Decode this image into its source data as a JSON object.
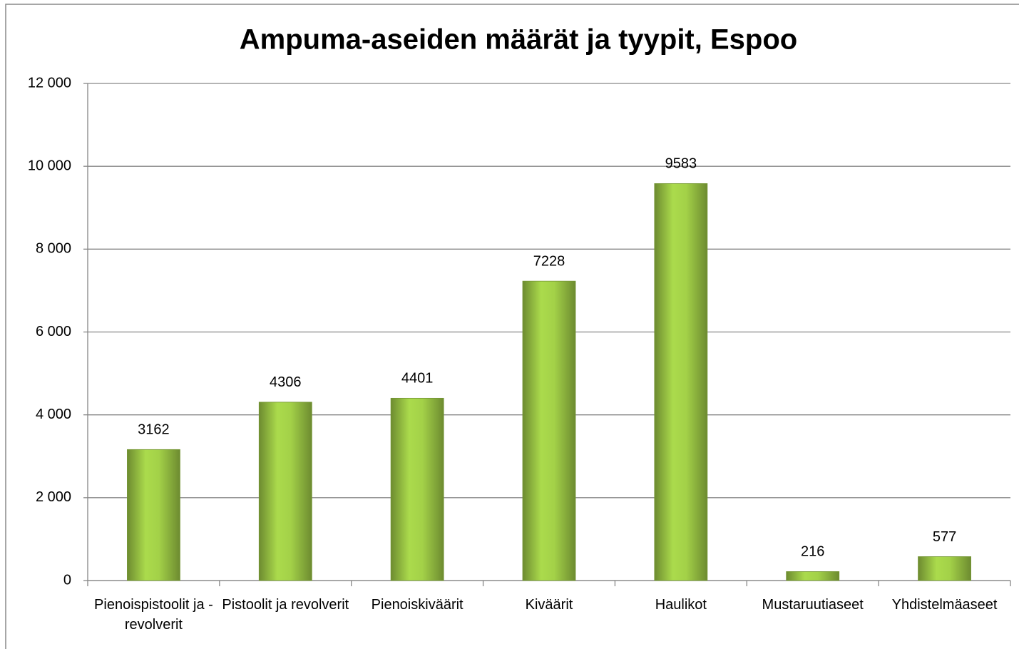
{
  "chart_data": {
    "type": "bar",
    "title": "Ampuma-aseiden määrät ja tyypit, Espoo",
    "categories": [
      "Pienoispistoolit ja -revolverit",
      "Pistoolit ja revolverit",
      "Pienoiskiväärit",
      "Kiväärit",
      "Haulikot",
      "Mustaruutiaseet",
      "Yhdistelmäaseet"
    ],
    "values": [
      3162,
      4306,
      4401,
      7228,
      9583,
      216,
      577
    ],
    "color": "#9bc745",
    "ylim": [
      0,
      12000
    ],
    "yticks": [
      0,
      {
        "value": 2000,
        "label": "2 000"
      },
      {
        "value": 4000,
        "label": "4 000"
      },
      {
        "value": 6000,
        "label": "6 000"
      },
      {
        "value": 8000,
        "label": "8 000"
      },
      {
        "value": 10000,
        "label": "10 000"
      },
      {
        "value": 12000,
        "label": "12 000"
      }
    ],
    "grid": true
  }
}
